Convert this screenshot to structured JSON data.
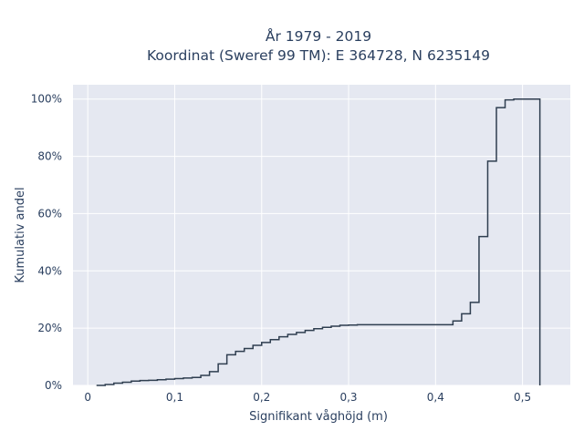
{
  "chart_data": {
    "type": "line",
    "subtype": "step-ecdf",
    "title_lines": [
      "År 1979 - 2019",
      "Koordinat (Sweref 99 TM): E 364728, N 6235149"
    ],
    "xlabel": "Signifikant våghöjd (m)",
    "ylabel": "Kumulativ andel",
    "xlim": [
      -0.017,
      0.555
    ],
    "ylim": [
      0,
      1.05
    ],
    "x_ticks": [
      0,
      0.1,
      0.2,
      0.3,
      0.4,
      0.5
    ],
    "x_tick_labels": [
      "0",
      "0,1",
      "0,2",
      "0,3",
      "0,4",
      "0,5"
    ],
    "y_ticks": [
      0,
      0.2,
      0.4,
      0.6,
      0.8,
      1.0
    ],
    "y_tick_labels": [
      "0%",
      "20%",
      "40%",
      "60%",
      "80%",
      "100%"
    ],
    "grid": true,
    "colors": {
      "background": "#e5e8f1",
      "grid": "#ffffff",
      "line": "#2f3e50",
      "text": "#2a3f5f"
    },
    "series": [
      {
        "x": [
          0.01,
          0.02,
          0.03,
          0.04,
          0.05,
          0.06,
          0.07,
          0.08,
          0.09,
          0.1,
          0.11,
          0.12,
          0.13,
          0.14,
          0.15,
          0.16,
          0.17,
          0.18,
          0.19,
          0.2,
          0.21,
          0.22,
          0.23,
          0.24,
          0.25,
          0.26,
          0.27,
          0.28,
          0.29,
          0.3,
          0.31,
          0.32,
          0.33,
          0.34,
          0.35,
          0.36,
          0.37,
          0.38,
          0.39,
          0.4,
          0.41,
          0.42,
          0.43,
          0.44,
          0.45,
          0.46,
          0.47,
          0.48,
          0.49,
          0.5,
          0.51,
          0.52
        ],
        "y": [
          0.0,
          0.003,
          0.008,
          0.011,
          0.015,
          0.017,
          0.018,
          0.02,
          0.022,
          0.024,
          0.026,
          0.028,
          0.035,
          0.048,
          0.075,
          0.107,
          0.119,
          0.129,
          0.14,
          0.15,
          0.16,
          0.17,
          0.178,
          0.185,
          0.192,
          0.198,
          0.203,
          0.207,
          0.21,
          0.211,
          0.212,
          0.212,
          0.212,
          0.212,
          0.212,
          0.212,
          0.212,
          0.212,
          0.212,
          0.212,
          0.212,
          0.225,
          0.25,
          0.29,
          0.52,
          0.783,
          0.97,
          0.997,
          1.0,
          1.0,
          1.0,
          0.0
        ]
      }
    ]
  }
}
